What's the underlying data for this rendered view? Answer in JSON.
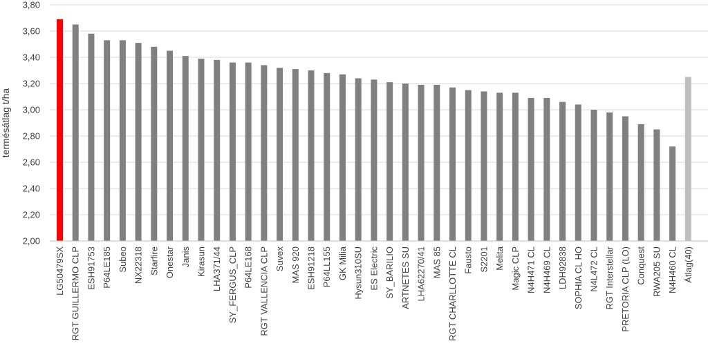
{
  "chart_data": {
    "type": "bar",
    "title": "",
    "xlabel": "",
    "ylabel": "termésátlag t/ha",
    "ylim": [
      2.0,
      3.8
    ],
    "yticks": [
      "2,00",
      "2,20",
      "2,40",
      "2,60",
      "2,80",
      "3,00",
      "3,20",
      "3,40",
      "3,60",
      "3,80"
    ],
    "grid": true,
    "legend": "none",
    "colors": {
      "highlight": "#ff0000",
      "default": "#808080",
      "average": "#bfbfbf",
      "grid": "#d9d9d9",
      "axis": "#bfbfbf"
    },
    "categories": [
      "LG50479SX",
      "RGT GUILLERMO CLP",
      "ESH91753",
      "P64LE185",
      "Subeo",
      "NX22318",
      "Starfire",
      "Onestar",
      "Janis",
      "Kirasun",
      "LHA371/44",
      "SY_FERGUS_CLP",
      "P64LE168",
      "RGT VALLENCIA CLP",
      "Suvex",
      "MAS 920",
      "ESH91218",
      "P64LL155",
      "GK Milia",
      "Hysun310SU",
      "ES Electric",
      "SY_BARILIO",
      "ARTNETES SU",
      "LHA62270/41",
      "MAS 85",
      "RGT CHARLLOTTE CL",
      "Fausto",
      "S2201",
      "Melita",
      "Magic CLP",
      "N4H471 CL",
      "N4H469 CL",
      "LDH92838",
      "SOPHIA CL HO",
      "N4L472 CL",
      "RGT Interstellar",
      "PRETORIA CLP (LO)",
      "Conquest",
      "RWA205 SU",
      "N4H460 CL",
      "Átlag(40)"
    ],
    "values": [
      3.69,
      3.65,
      3.58,
      3.53,
      3.53,
      3.51,
      3.48,
      3.45,
      3.41,
      3.39,
      3.38,
      3.36,
      3.36,
      3.34,
      3.32,
      3.31,
      3.3,
      3.28,
      3.27,
      3.24,
      3.23,
      3.21,
      3.2,
      3.19,
      3.19,
      3.17,
      3.15,
      3.14,
      3.13,
      3.13,
      3.09,
      3.09,
      3.06,
      3.04,
      3.0,
      2.98,
      2.95,
      2.89,
      2.85,
      2.72,
      3.25
    ],
    "bar_roles": [
      "highlight",
      "default",
      "default",
      "default",
      "default",
      "default",
      "default",
      "default",
      "default",
      "default",
      "default",
      "default",
      "default",
      "default",
      "default",
      "default",
      "default",
      "default",
      "default",
      "default",
      "default",
      "default",
      "default",
      "default",
      "default",
      "default",
      "default",
      "default",
      "default",
      "default",
      "default",
      "default",
      "default",
      "default",
      "default",
      "default",
      "default",
      "default",
      "default",
      "default",
      "average"
    ]
  }
}
